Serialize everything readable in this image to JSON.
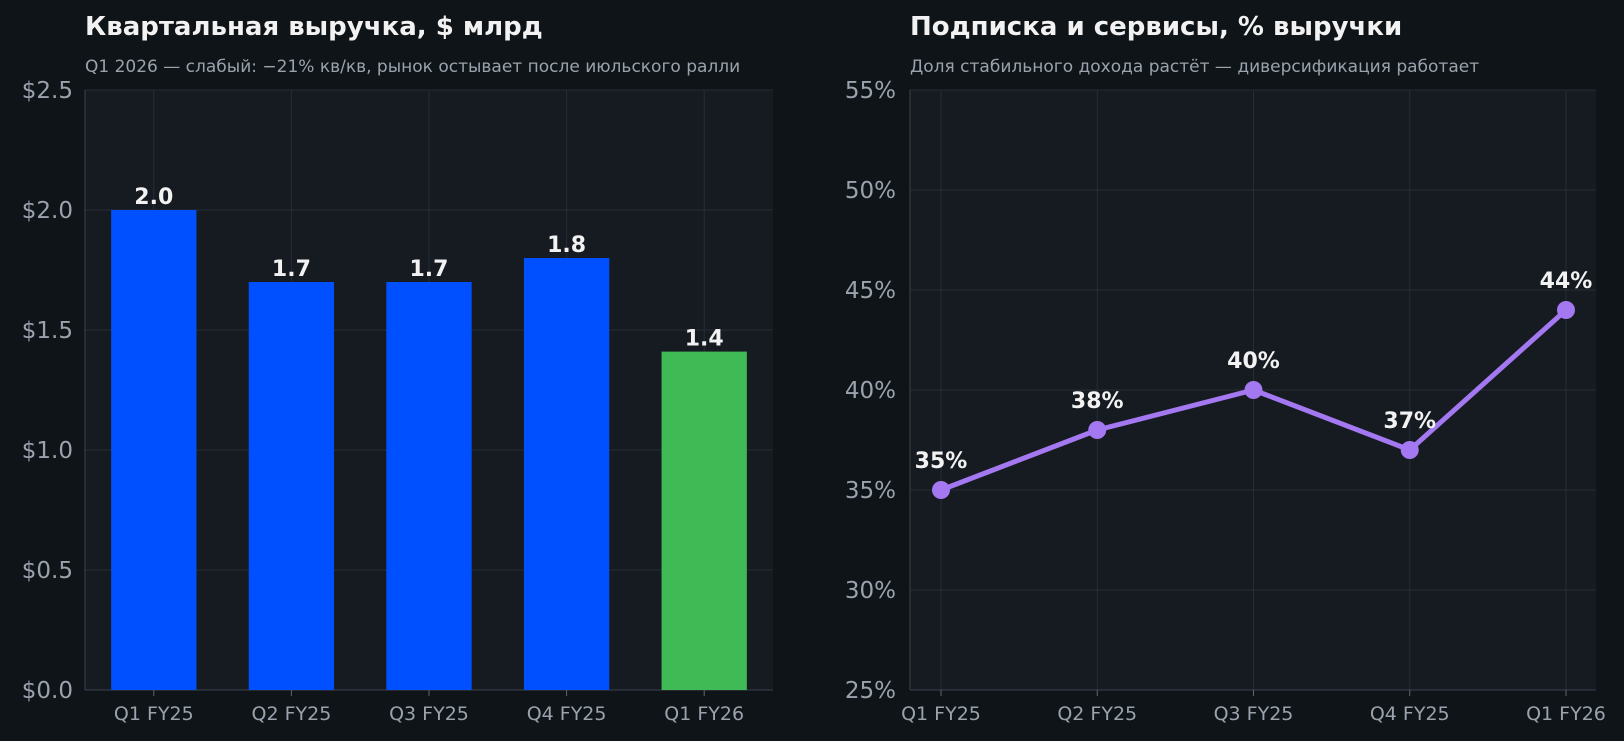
{
  "chart_data": [
    {
      "type": "bar",
      "title": "Квартальная выручка, $ млрд",
      "subtitle": "Q1 2026 — слабый: −21% кв/кв, рынок остывает после июльского ралли",
      "categories": [
        "Q1 FY25",
        "Q2 FY25",
        "Q3 FY25",
        "Q4 FY25",
        "Q1 FY26"
      ],
      "values": [
        2.0,
        1.7,
        1.7,
        1.8,
        1.41
      ],
      "data_labels": [
        "2.0",
        "1.7",
        "1.7",
        "1.8",
        "1.4"
      ],
      "bar_colors": [
        "#0050ff",
        "#0050ff",
        "#0050ff",
        "#0050ff",
        "#3fba55"
      ],
      "ylim": [
        0,
        2.5
      ],
      "yticks": [
        0,
        0.5,
        1.0,
        1.5,
        2.0,
        2.5
      ],
      "ytick_labels": [
        "$0.0",
        "$0.5",
        "$1.0",
        "$1.5",
        "$2.0",
        "$2.5"
      ],
      "grid": true,
      "xlabel": "",
      "ylabel": ""
    },
    {
      "type": "line",
      "title": "Подписка и сервисы, % выручки",
      "subtitle": "Доля стабильного дохода растёт — диверсификация работает",
      "categories": [
        "Q1 FY25",
        "Q2 FY25",
        "Q3 FY25",
        "Q4 FY25",
        "Q1 FY26"
      ],
      "values": [
        35,
        38,
        40,
        37,
        44
      ],
      "data_labels": [
        "35%",
        "38%",
        "40%",
        "37%",
        "44%"
      ],
      "line_color": "#a478f0",
      "ylim": [
        25,
        55
      ],
      "yticks": [
        25,
        30,
        35,
        40,
        45,
        50,
        55
      ],
      "ytick_labels": [
        "25%",
        "30%",
        "35%",
        "40%",
        "45%",
        "50%",
        "55%"
      ],
      "grid": true,
      "xlabel": "",
      "ylabel": ""
    }
  ]
}
